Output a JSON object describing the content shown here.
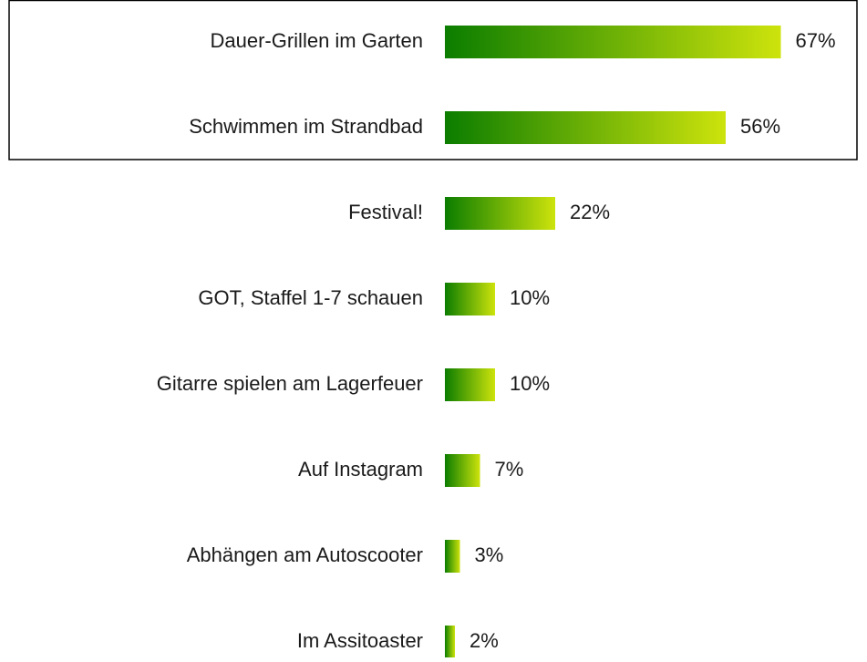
{
  "chart_data": {
    "type": "hbar",
    "categories": [
      "Dauer-Grillen im Garten",
      "Schwimmen im Strandbad",
      "Festival!",
      "GOT, Staffel 1-7 schauen",
      "Gitarre spielen am Lagerfeuer",
      "Auf Instagram",
      "Abhängen am Autoscooter",
      "Im Assitoaster"
    ],
    "values": [
      67,
      56,
      22,
      10,
      10,
      7,
      3,
      2
    ],
    "value_labels": [
      "67%",
      "56%",
      "22%",
      "10%",
      "10%",
      "7%",
      "3%",
      "2%"
    ],
    "gradient": [
      "#0b7d00",
      "#cde30c"
    ]
  }
}
